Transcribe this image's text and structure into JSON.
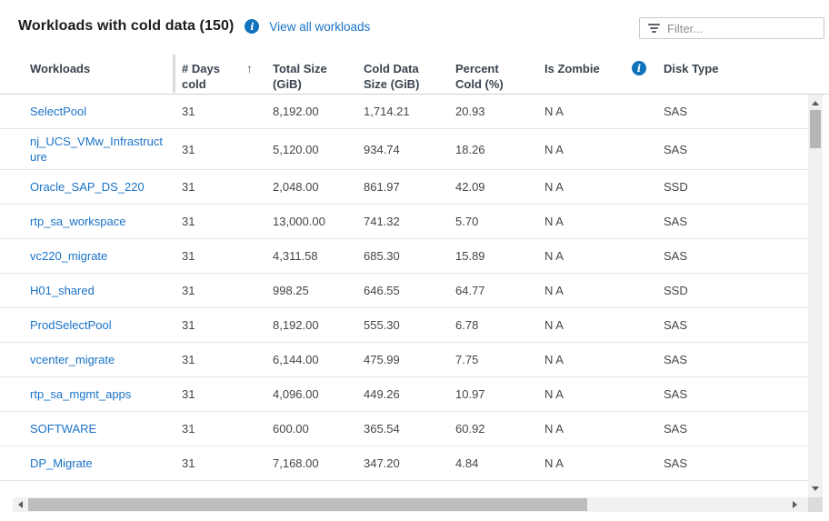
{
  "header": {
    "title": "Workloads with cold data (150)",
    "title_info_icon": "info-icon",
    "link": "View all workloads",
    "filter_placeholder": "Filter...",
    "filter_value": ""
  },
  "table": {
    "columns": [
      {
        "label": "Workloads"
      },
      {
        "label": "# Days cold",
        "sort": "ascending",
        "sort_icon": "up-arrow"
      },
      {
        "label": "Total Size (GiB)"
      },
      {
        "label": "Cold Data Size (GiB)"
      },
      {
        "label": "Percent Cold (%)"
      },
      {
        "label": "Is Zombie",
        "info_icon": "info-icon"
      },
      {
        "label": "Disk Type"
      }
    ],
    "rows": [
      {
        "workload": "SelectPool",
        "days_cold": "31",
        "total_size_gib": "8,192.00",
        "cold_data_size_gib": "1,714.21",
        "percent_cold": "20.93",
        "is_zombie": "N A",
        "disk_type": "SAS"
      },
      {
        "workload": "nj_UCS_VMw_Infrastructure",
        "days_cold": "31",
        "total_size_gib": "5,120.00",
        "cold_data_size_gib": "934.74",
        "percent_cold": "18.26",
        "is_zombie": "N A",
        "disk_type": "SAS"
      },
      {
        "workload": "Oracle_SAP_DS_220",
        "days_cold": "31",
        "total_size_gib": "2,048.00",
        "cold_data_size_gib": "861.97",
        "percent_cold": "42.09",
        "is_zombie": "N A",
        "disk_type": "SSD"
      },
      {
        "workload": "rtp_sa_workspace",
        "days_cold": "31",
        "total_size_gib": "13,000.00",
        "cold_data_size_gib": "741.32",
        "percent_cold": "5.70",
        "is_zombie": "N A",
        "disk_type": "SAS"
      },
      {
        "workload": "vc220_migrate",
        "days_cold": "31",
        "total_size_gib": "4,311.58",
        "cold_data_size_gib": "685.30",
        "percent_cold": "15.89",
        "is_zombie": "N A",
        "disk_type": "SAS"
      },
      {
        "workload": "H01_shared",
        "days_cold": "31",
        "total_size_gib": "998.25",
        "cold_data_size_gib": "646.55",
        "percent_cold": "64.77",
        "is_zombie": "N A",
        "disk_type": "SSD"
      },
      {
        "workload": "ProdSelectPool",
        "days_cold": "31",
        "total_size_gib": "8,192.00",
        "cold_data_size_gib": "555.30",
        "percent_cold": "6.78",
        "is_zombie": "N A",
        "disk_type": "SAS"
      },
      {
        "workload": "vcenter_migrate",
        "days_cold": "31",
        "total_size_gib": "6,144.00",
        "cold_data_size_gib": "475.99",
        "percent_cold": "7.75",
        "is_zombie": "N A",
        "disk_type": "SAS"
      },
      {
        "workload": "rtp_sa_mgmt_apps",
        "days_cold": "31",
        "total_size_gib": "4,096.00",
        "cold_data_size_gib": "449.26",
        "percent_cold": "10.97",
        "is_zombie": "N A",
        "disk_type": "SAS"
      },
      {
        "workload": "SOFTWARE",
        "days_cold": "31",
        "total_size_gib": "600.00",
        "cold_data_size_gib": "365.54",
        "percent_cold": "60.92",
        "is_zombie": "N A",
        "disk_type": "SAS"
      },
      {
        "workload": "DP_Migrate",
        "days_cold": "31",
        "total_size_gib": "7,168.00",
        "cold_data_size_gib": "347.20",
        "percent_cold": "4.84",
        "is_zombie": "N A",
        "disk_type": "SAS"
      }
    ]
  },
  "icons": {
    "sort_ascending": "↑",
    "info_glyph": "i"
  },
  "colors": {
    "link_blue": "#1973c8",
    "info_icon_blue": "#1172bc",
    "header_text": "#39434e",
    "row_separator": "#e3e7ea",
    "scroll_thumb": "#b6b6b6"
  }
}
